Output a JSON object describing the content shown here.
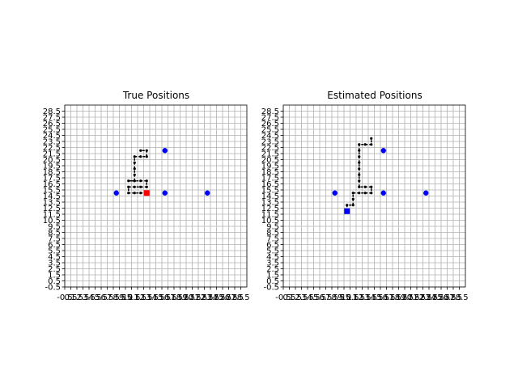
{
  "figure": {
    "background": "#ffffff"
  },
  "chart_data": [
    {
      "type": "scatter",
      "title": "True Positions",
      "xlim": [
        -0.5,
        29.5
      ],
      "ylim": [
        -0.5,
        29.5
      ],
      "grid": true,
      "yticks": [
        "-0.5",
        "0.5",
        "1.5",
        "2.5",
        "3.5",
        "4.5",
        "5.5",
        "6.5",
        "7.5",
        "8.5",
        "9.5",
        "10.5",
        "11.5",
        "12.5",
        "13.5",
        "14.5",
        "15.5",
        "16.5",
        "17.5",
        "18.5",
        "19.5",
        "20.5",
        "21.5",
        "22.5",
        "23.5",
        "24.5",
        "25.5",
        "26.5",
        "27.5",
        "28.5"
      ],
      "xticks": [
        "-0.5",
        "0.5",
        "1.5",
        "2.5",
        "3.5",
        "4.5",
        "5.5",
        "6.5",
        "7.5",
        "8.5",
        "9.5",
        "10.5",
        "11.5",
        "12.5",
        "13.5",
        "14.5",
        "15.5",
        "16.5",
        "17.5",
        "18.5",
        "19.5",
        "20.5",
        "21.5",
        "22.5",
        "23.5",
        "24.5",
        "25.5",
        "26.5",
        "27.5",
        "28.5"
      ],
      "path": {
        "color": "#000000",
        "style": "dashed",
        "points": [
          [
            13,
            15
          ],
          [
            12,
            15
          ],
          [
            11,
            15
          ],
          [
            10,
            15
          ],
          [
            10,
            16
          ],
          [
            11,
            16
          ],
          [
            12,
            16
          ],
          [
            13,
            16
          ],
          [
            13,
            17
          ],
          [
            12,
            17
          ],
          [
            11,
            17
          ],
          [
            10,
            17
          ],
          [
            11,
            17
          ],
          [
            11,
            18
          ],
          [
            11,
            19
          ],
          [
            11,
            20
          ],
          [
            11,
            21
          ],
          [
            12,
            21
          ],
          [
            13,
            21
          ],
          [
            13,
            22
          ],
          [
            12,
            22
          ]
        ]
      },
      "landmarks": {
        "color": "#0000ff",
        "points": [
          [
            8,
            15
          ],
          [
            16,
            15
          ],
          [
            23,
            15
          ],
          [
            16,
            22
          ]
        ]
      },
      "current_position": {
        "color": "#ff0000",
        "marker": "square",
        "point": [
          13,
          15
        ]
      }
    },
    {
      "type": "scatter",
      "title": "Estimated Positions",
      "xlim": [
        -0.5,
        29.5
      ],
      "ylim": [
        -0.5,
        29.5
      ],
      "grid": true,
      "yticks": [
        "-0.5",
        "0.5",
        "1.5",
        "2.5",
        "3.5",
        "4.5",
        "5.5",
        "6.5",
        "7.5",
        "8.5",
        "9.5",
        "10.5",
        "11.5",
        "12.5",
        "13.5",
        "14.5",
        "15.5",
        "16.5",
        "17.5",
        "18.5",
        "19.5",
        "20.5",
        "21.5",
        "22.5",
        "23.5",
        "24.5",
        "25.5",
        "26.5",
        "27.5",
        "28.5"
      ],
      "xticks": [
        "-0.5",
        "0.5",
        "1.5",
        "2.5",
        "3.5",
        "4.5",
        "5.5",
        "6.5",
        "7.5",
        "8.5",
        "9.5",
        "10.5",
        "11.5",
        "12.5",
        "13.5",
        "14.5",
        "15.5",
        "16.5",
        "17.5",
        "18.5",
        "19.5",
        "20.5",
        "21.5",
        "22.5",
        "23.5",
        "24.5",
        "25.5",
        "26.5",
        "27.5",
        "28.5"
      ],
      "path": {
        "color": "#000000",
        "style": "dashed",
        "points": [
          [
            10,
            12
          ],
          [
            10,
            13
          ],
          [
            11,
            13
          ],
          [
            11,
            14
          ],
          [
            11,
            15
          ],
          [
            12,
            15
          ],
          [
            13,
            15
          ],
          [
            14,
            15
          ],
          [
            14,
            16
          ],
          [
            13,
            16
          ],
          [
            12,
            16
          ],
          [
            12,
            17
          ],
          [
            12,
            18
          ],
          [
            12,
            19
          ],
          [
            12,
            20
          ],
          [
            12,
            21
          ],
          [
            12,
            22
          ],
          [
            12,
            23
          ],
          [
            13,
            23
          ],
          [
            14,
            23
          ],
          [
            14,
            24
          ]
        ]
      },
      "landmarks": {
        "color": "#0000ff",
        "points": [
          [
            8,
            15
          ],
          [
            16,
            15
          ],
          [
            23,
            15
          ],
          [
            16,
            22
          ]
        ]
      },
      "current_position": {
        "color": "#0000ff",
        "marker": "square",
        "point": [
          10,
          12
        ]
      }
    }
  ]
}
